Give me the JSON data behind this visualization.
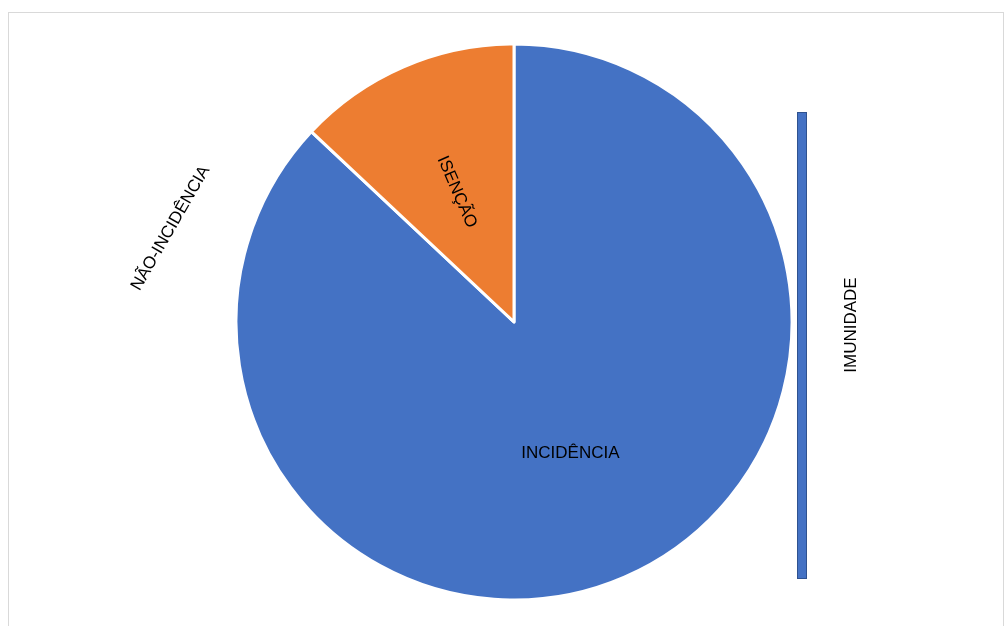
{
  "chart_data": {
    "type": "pie",
    "categories": [
      "INCIDÊNCIA",
      "ISENÇÃO"
    ],
    "values": [
      87,
      13
    ],
    "colors": [
      "#4472c4",
      "#ed7d31"
    ],
    "annotations": [
      "NÃO-INCIDÊNCIA",
      "IMUNIDADE"
    ]
  }
}
